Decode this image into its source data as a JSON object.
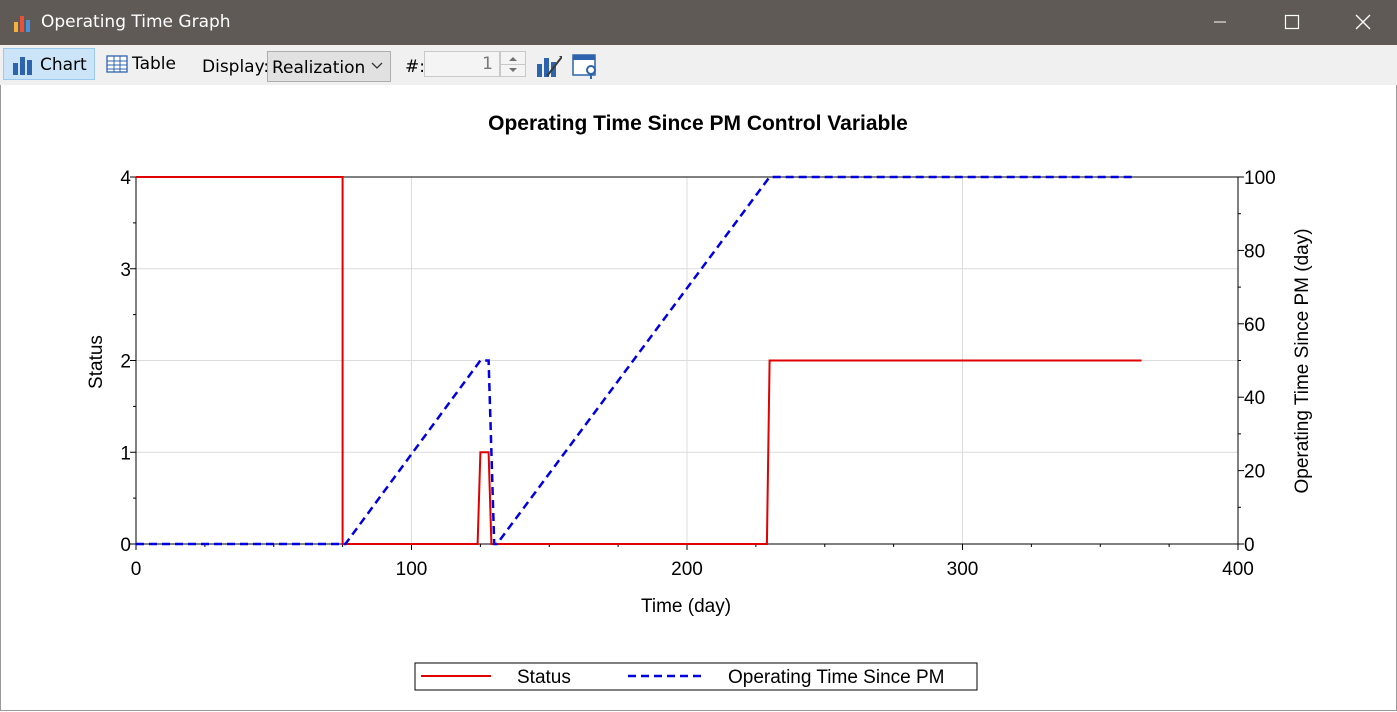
{
  "window": {
    "title": "Operating Time Graph"
  },
  "toolbar": {
    "chart_label": "Chart",
    "table_label": "Table",
    "display_label": "Display:",
    "display_value": "Realization",
    "number_label": "#:",
    "number_value": "1"
  },
  "chart_data": {
    "type": "line",
    "title": "Operating Time Since PM Control Variable",
    "xlabel": "Time (day)",
    "ylabel": "Status",
    "y2label": "Operating Time Since PM (day)",
    "xlim": [
      0,
      400
    ],
    "ylim": [
      0,
      4
    ],
    "y2lim": [
      0,
      100
    ],
    "xticks": [
      0,
      100,
      200,
      300,
      400
    ],
    "yticks": [
      0,
      1,
      2,
      3,
      4
    ],
    "y2ticks": [
      0,
      20,
      40,
      60,
      80,
      100
    ],
    "grid": true,
    "legend_position": "bottom-center",
    "series": [
      {
        "name": "Status",
        "axis": "left",
        "color": "#e00000",
        "style": "solid",
        "x": [
          0,
          75,
          75,
          124,
          125,
          128,
          129,
          229,
          230,
          365
        ],
        "y": [
          4,
          4,
          0,
          0,
          1,
          1,
          0,
          0,
          2,
          2
        ]
      },
      {
        "name": "Operating Time Since PM",
        "axis": "right",
        "color": "#0000e0",
        "style": "dashed",
        "x": [
          0,
          76,
          125,
          128,
          130,
          131,
          230,
          362
        ],
        "y": [
          0,
          0,
          50,
          50,
          0,
          0,
          100,
          100
        ]
      }
    ]
  }
}
